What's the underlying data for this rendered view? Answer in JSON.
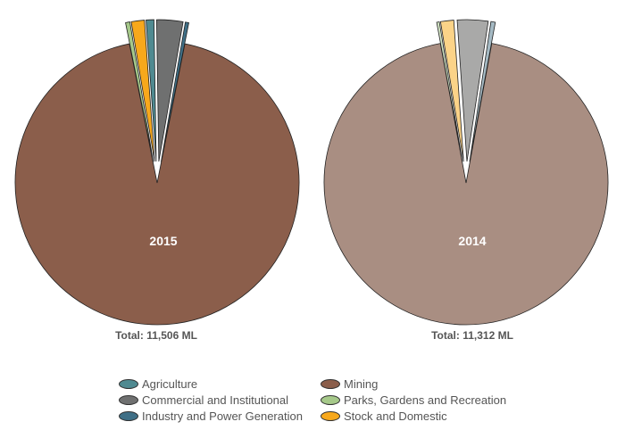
{
  "chart_data": {
    "type": "pie",
    "categories": [
      "Agriculture",
      "Commercial and Institutional",
      "Industry and Power Generation",
      "Mining",
      "Parks, Gardens and Recreation",
      "Stock and Domestic"
    ],
    "pies": [
      {
        "label": "2015",
        "total_label": "Total: 11,506 ML",
        "values": [
          0.9,
          3.0,
          0.4,
          94.2,
          0.5,
          1.5
        ],
        "exploded": [
          true,
          true,
          true,
          false,
          true,
          true
        ]
      },
      {
        "label": "2014",
        "total_label": "Total: 11,312 ML",
        "values": [
          0.0,
          3.5,
          0.5,
          94.2,
          0.3,
          1.5
        ],
        "exploded": [
          true,
          true,
          true,
          false,
          true,
          true
        ]
      }
    ],
    "colors": {
      "2015": [
        "#4f8a91",
        "#6f7070",
        "#3f6f86",
        "#8b5e4b",
        "#a6c98a",
        "#f7a81c"
      ],
      "2014": [
        "#9fc1c3",
        "#a9a9a8",
        "#a5bac4",
        "#a98e82",
        "#d2e4c4",
        "#fbd388"
      ]
    },
    "legend_colors": [
      "#4f8a91",
      "#6f7070",
      "#3f6f86",
      "#8b5e4b",
      "#a6c98a",
      "#f7a81c"
    ],
    "legend": {
      "placement": "bottom",
      "items": [
        "Agriculture",
        "Mining",
        "Commercial and Institutional",
        "Parks, Gardens and Recreation",
        "Industry and Power Generation",
        "Stock and Domestic"
      ]
    }
  }
}
